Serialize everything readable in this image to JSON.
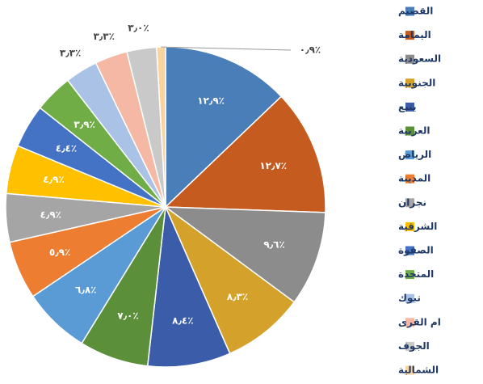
{
  "chart_data": {
    "type": "pie",
    "categories": [
      "القصيم",
      "اليمامة",
      "السعودية",
      "الجنوبية",
      "ينبع",
      "العربية",
      "الرياض",
      "المدينة",
      "نجران",
      "الشرقية",
      "الصفوة",
      "المتحدة",
      "تبوك",
      "ام القرى",
      "الجوف",
      "الشمالية"
    ],
    "values": [
      12.9,
      12.7,
      9.6,
      8.3,
      8.4,
      7.0,
      6.8,
      5.9,
      4.9,
      4.9,
      4.4,
      3.9,
      3.3,
      3.3,
      3.0,
      0.9
    ],
    "value_labels": [
      "١٢٫٩٪",
      "١٢٫٧٪",
      "٩٫٦٪",
      "٨٫٣٪",
      "٨٫٤٪",
      "٧٫٠٪",
      "٦٫٨٪",
      "٥٫٩٪",
      "٤٫٩٪",
      "٤٫٩٪",
      "٤٫٤٪",
      "٣٫٩٪",
      "٣٫٣٪",
      "٣٫٣٪",
      "٣٫٠٪",
      "٠٫٩٪"
    ],
    "colors": [
      "#4a7eb8",
      "#c65b1f",
      "#8c8c8c",
      "#d4a12b",
      "#3b5ca8",
      "#5b8f3a",
      "#5b9bd5",
      "#ed7d31",
      "#a5a5a5",
      "#ffc000",
      "#4472c4",
      "#70ad47",
      "#a9c2e6",
      "#f4b8a4",
      "#c9c9c9",
      "#fbd39c"
    ],
    "legend": "right"
  }
}
